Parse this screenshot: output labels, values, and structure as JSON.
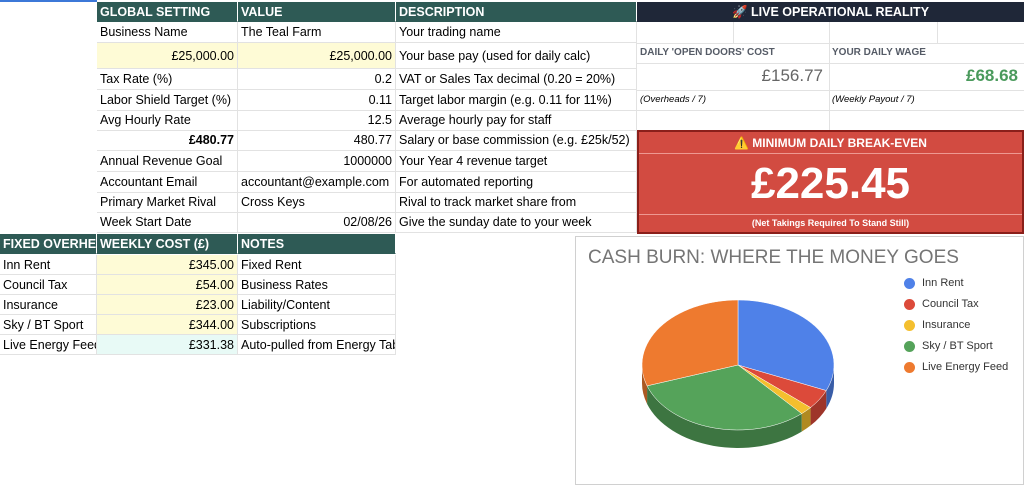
{
  "settings": {
    "headers": [
      "GLOBAL SETTING",
      "VALUE",
      "DESCRIPTION"
    ],
    "rows": [
      {
        "label": "Business Name",
        "value_left": "",
        "value": "The Teal Farm",
        "desc": "Your trading name"
      },
      {
        "label": "",
        "value_left": "£25,000.00",
        "value": "£25,000.00",
        "desc": "Your base pay (used for daily calc)"
      },
      {
        "label": "Tax Rate (%)",
        "value_left": "",
        "value": "0.2",
        "desc": "VAT or Sales Tax decimal (0.20 = 20%)"
      },
      {
        "label": "Labor Shield Target (%)",
        "value_left": "",
        "value": "0.11",
        "desc": "Target labor margin (e.g. 0.11 for 11%)"
      },
      {
        "label": "Avg Hourly Rate",
        "value_left": "",
        "value": "12.5",
        "desc": "Average hourly pay for staff"
      },
      {
        "label": "",
        "value_left": "£480.77",
        "value": "480.77",
        "desc": "Salary or base commission (e.g. £25k/52)"
      },
      {
        "label": "Annual Revenue Goal",
        "value_left": "",
        "value": "1000000",
        "desc": "Your Year 4 revenue target"
      },
      {
        "label": "Accountant Email",
        "value_left": "",
        "value": "accountant@example.com",
        "desc": "For automated reporting"
      },
      {
        "label": "Primary Market Rival",
        "value_left": "",
        "value": "Cross Keys",
        "desc": "Rival to track market share from"
      },
      {
        "label": "Week Start Date",
        "value_left": "",
        "value": "02/08/26",
        "desc": "Give the sunday date to your week"
      }
    ]
  },
  "overheads": {
    "headers": [
      "FIXED OVERHEADS",
      "WEEKLY COST (£)",
      "NOTES"
    ],
    "rows": [
      {
        "item": "Inn Rent",
        "cost": "£345.00",
        "note": "Fixed Rent"
      },
      {
        "item": "Council Tax",
        "cost": "£54.00",
        "note": "Business Rates"
      },
      {
        "item": "Insurance",
        "cost": "£23.00",
        "note": "Liability/Content"
      },
      {
        "item": "Sky / BT Sport",
        "cost": "£344.00",
        "note": "Subscriptions"
      },
      {
        "item": "Live Energy Feed",
        "cost": "£331.38",
        "note": "Auto-pulled from Energy Tab"
      }
    ]
  },
  "dashboard": {
    "title": "🚀 LIVE OPERATIONAL REALITY",
    "open_doors_label": "DAILY 'OPEN DOORS' COST",
    "open_doors_value": "£156.77",
    "open_doors_note": "(Overheads / 7)",
    "wage_label": "YOUR DAILY WAGE",
    "wage_value": "£68.68",
    "wage_note": "(Weekly Payout / 7)",
    "breakeven_title": "⚠️ MINIMUM DAILY BREAK-EVEN",
    "breakeven_value": "£225.45",
    "breakeven_note": "(Net Takings Required To Stand Still)",
    "colors": {
      "header_teal": "#2e5a55",
      "header_navy": "#1f2738",
      "alert_red": "#d24b41",
      "wage_green": "#4a9a5c"
    }
  },
  "chart_data": {
    "type": "pie",
    "title": "CASH BURN: WHERE THE MONEY GOES",
    "categories": [
      "Inn Rent",
      "Council Tax",
      "Insurance",
      "Sky / BT Sport",
      "Live Energy Feed"
    ],
    "values": [
      345.0,
      54.0,
      23.0,
      344.0,
      331.38
    ],
    "colors": [
      "#4f81e8",
      "#dc4a3a",
      "#f4bf2e",
      "#55a35a",
      "#ee7a2f"
    ],
    "legend_position": "right",
    "style": "3d"
  }
}
